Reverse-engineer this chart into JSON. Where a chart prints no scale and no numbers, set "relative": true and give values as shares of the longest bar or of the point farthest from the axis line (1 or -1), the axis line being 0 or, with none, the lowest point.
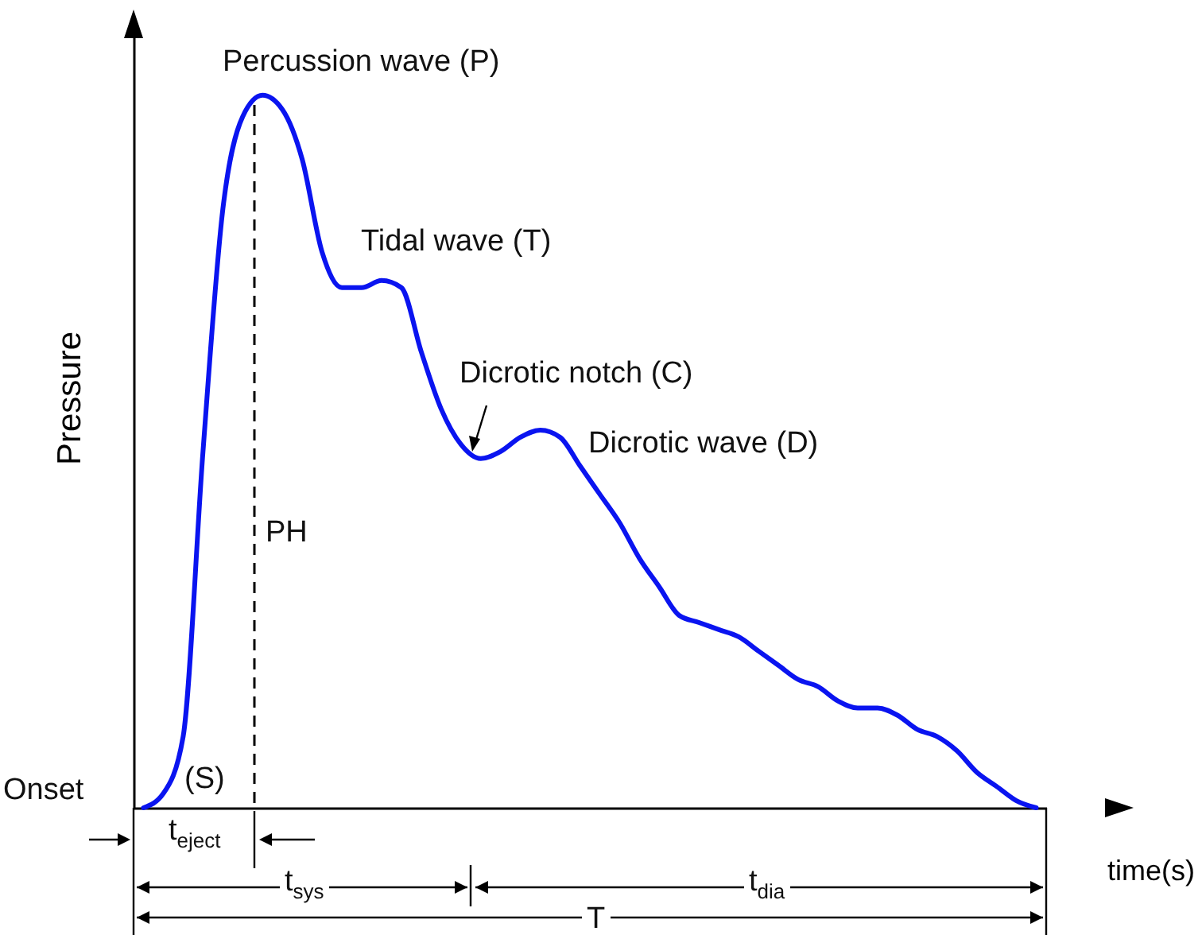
{
  "chart_data": {
    "type": "line",
    "relative": true,
    "xlabel": "time(s)",
    "ylabel": "Pressure",
    "categories": [
      null,
      null,
      null,
      null,
      null,
      null,
      null,
      null,
      null,
      null,
      null,
      null,
      null,
      null,
      null,
      null,
      null,
      null,
      null,
      null,
      null,
      null,
      null,
      null,
      null,
      null,
      null,
      null,
      null,
      null,
      null,
      null,
      null,
      null,
      null,
      null,
      null,
      null,
      null,
      null,
      null,
      null,
      null,
      null,
      null,
      null
    ],
    "series": [
      {
        "color": "#0a14f0",
        "values": [
          0,
          0.02,
          0.1,
          0.5,
          0.84,
          0.97,
          1,
          0.98,
          0.91,
          0.78,
          0.73,
          0.73,
          0.74,
          0.73,
          0.64,
          0.56,
          0.51,
          0.49,
          0.5,
          0.52,
          0.53,
          0.52,
          0.48,
          0.44,
          0.4,
          0.35,
          0.31,
          0.27,
          0.26,
          0.25,
          0.24,
          0.22,
          0.2,
          0.18,
          0.17,
          0.15,
          0.14,
          0.14,
          0.13,
          0.11,
          0.1,
          0.08,
          0.05,
          0.03,
          0.01,
          0
        ]
      }
    ],
    "annotations": [
      "Percussion wave  (P)",
      "Tidal wave  (T)",
      "Dicrotic notch  (C)",
      "Dicrotic wave  (D)",
      "PH",
      "(S)",
      "Onset",
      "t$_{eject}$",
      "t$_{sys}$",
      "t$_{dia}$",
      "T"
    ]
  }
}
